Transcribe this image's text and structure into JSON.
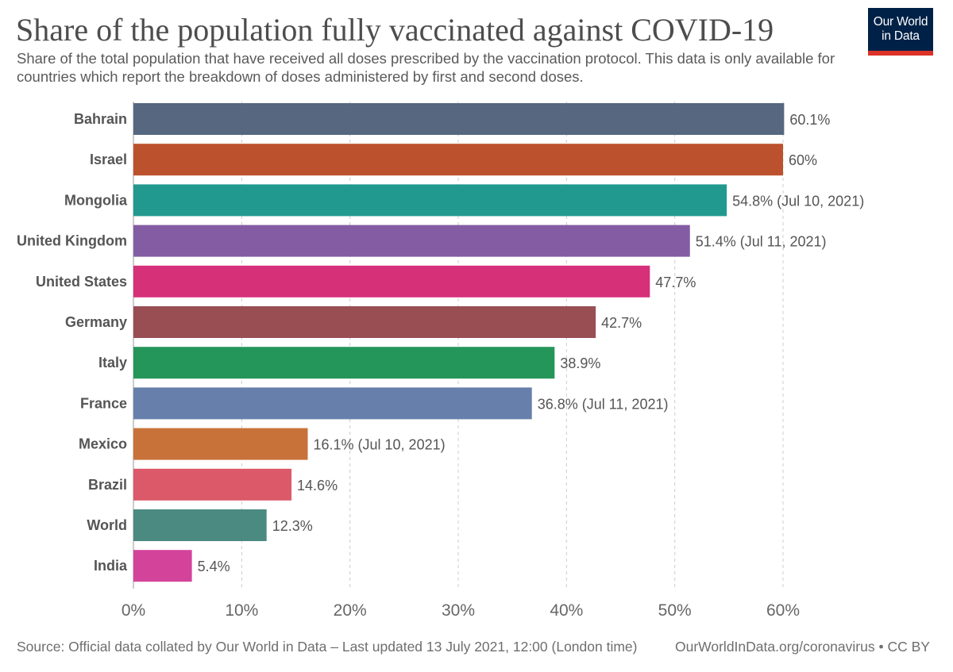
{
  "header": {
    "title": "Share of the population fully vaccinated against COVID-19",
    "subtitle": "Share of the total population that have received all doses prescribed by the vaccination protocol. This data is only available for countries which report the breakdown of doses administered by first and second doses.",
    "logo_line1": "Our World",
    "logo_line2": "in Data"
  },
  "footer": {
    "source": "Source: Official data collated by Our World in Data – Last updated 13 July 2021, 12:00 (London time)",
    "url": "OurWorldInData.org/coronavirus • CC BY"
  },
  "chart_data": {
    "type": "bar",
    "orientation": "horizontal",
    "categories": [
      "Bahrain",
      "Israel",
      "Mongolia",
      "United Kingdom",
      "United States",
      "Germany",
      "Italy",
      "France",
      "Mexico",
      "Brazil",
      "World",
      "India"
    ],
    "values": [
      60.1,
      60,
      54.8,
      51.4,
      47.7,
      42.7,
      38.9,
      36.8,
      16.1,
      14.6,
      12.3,
      5.4
    ],
    "labels": [
      "60.1%",
      "60%",
      "54.8% (Jul 10, 2021)",
      "51.4% (Jul 11, 2021)",
      "47.7%",
      "42.7%",
      "38.9%",
      "36.8% (Jul 11, 2021)",
      "16.1% (Jul 10, 2021)",
      "14.6%",
      "12.3%",
      "5.4%"
    ],
    "colors": [
      "#56677f",
      "#bb522d",
      "#22998e",
      "#835ca3",
      "#d63079",
      "#994e54",
      "#25965a",
      "#6680ab",
      "#c8723a",
      "#db5968",
      "#4a8a80",
      "#d3439a"
    ],
    "xlim": [
      0,
      60
    ],
    "x_ticks": [
      0,
      10,
      20,
      30,
      40,
      50,
      60
    ],
    "x_tick_labels": [
      "0%",
      "10%",
      "20%",
      "30%",
      "40%",
      "50%",
      "60%"
    ],
    "grid": "vertical dashed",
    "legend": "none"
  }
}
